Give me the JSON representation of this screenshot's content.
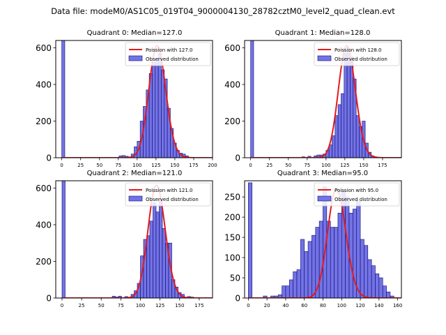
{
  "figure": {
    "suptitle": "Data file: modeM0/AS1C05_019T04_9000004130_28782cztM0_level2_quad_clean.evt"
  },
  "colors": {
    "bar_fill": "#7373e6",
    "bar_edge": "#0a0a6e",
    "poisson_line": "#e41a1c",
    "axes": "#000000"
  },
  "chart_data": [
    {
      "type": "bar",
      "title": "Quadrant 0: Median=127.0",
      "median": 127.0,
      "legend": {
        "line_label": "Poission with 127.0",
        "bar_label": "Observed distribution",
        "position": "upper-right"
      },
      "xlim": [
        -8,
        200
      ],
      "ylim": [
        0,
        640
      ],
      "xticks": [
        0,
        25,
        50,
        75,
        100,
        125,
        150,
        175,
        200
      ],
      "yticks": [
        0,
        200,
        400,
        600
      ],
      "bin_width": 4,
      "bins": [
        [
          0,
          640
        ],
        [
          76,
          10
        ],
        [
          80,
          12
        ],
        [
          84,
          8
        ],
        [
          88,
          5
        ],
        [
          92,
          20
        ],
        [
          96,
          60
        ],
        [
          100,
          90
        ],
        [
          104,
          200
        ],
        [
          108,
          280
        ],
        [
          112,
          370
        ],
        [
          116,
          460
        ],
        [
          120,
          520
        ],
        [
          124,
          540
        ],
        [
          128,
          570
        ],
        [
          132,
          480
        ],
        [
          136,
          430
        ],
        [
          140,
          270
        ],
        [
          144,
          160
        ],
        [
          148,
          80
        ],
        [
          152,
          40
        ],
        [
          156,
          25
        ],
        [
          160,
          20
        ],
        [
          164,
          10
        ]
      ],
      "poisson_peak": 610
    },
    {
      "type": "bar",
      "title": "Quadrant 1: Median=128.0",
      "median": 128.0,
      "legend": {
        "line_label": "Poission with 128.0",
        "bar_label": "Observed distribution",
        "position": "upper-right"
      },
      "xlim": [
        -8,
        200
      ],
      "ylim": [
        0,
        640
      ],
      "xticks": [
        0,
        25,
        50,
        75,
        100,
        125,
        150,
        175
      ],
      "yticks": [
        0,
        200,
        400,
        600
      ],
      "bin_width": 4,
      "bins": [
        [
          0,
          640
        ],
        [
          68,
          5
        ],
        [
          76,
          8
        ],
        [
          84,
          10
        ],
        [
          88,
          15
        ],
        [
          92,
          15
        ],
        [
          96,
          20
        ],
        [
          100,
          40
        ],
        [
          104,
          70
        ],
        [
          108,
          120
        ],
        [
          112,
          230
        ],
        [
          116,
          290
        ],
        [
          120,
          350
        ],
        [
          124,
          570
        ],
        [
          128,
          580
        ],
        [
          132,
          550
        ],
        [
          136,
          430
        ],
        [
          140,
          230
        ],
        [
          144,
          170
        ],
        [
          148,
          200
        ],
        [
          152,
          80
        ],
        [
          156,
          30
        ],
        [
          160,
          10
        ],
        [
          164,
          5
        ]
      ],
      "poisson_peak": 610
    },
    {
      "type": "bar",
      "title": "Quadrant 2: Median=121.0",
      "median": 121.0,
      "legend": {
        "line_label": "Poission with 121.0",
        "bar_label": "Observed distribution",
        "position": "upper-right"
      },
      "xlim": [
        -8,
        192
      ],
      "ylim": [
        0,
        640
      ],
      "xticks": [
        0,
        25,
        50,
        75,
        100,
        125,
        150,
        175
      ],
      "yticks": [
        0,
        200,
        400,
        600
      ],
      "bin_width": 4,
      "bins": [
        [
          0,
          640
        ],
        [
          64,
          10
        ],
        [
          68,
          5
        ],
        [
          72,
          10
        ],
        [
          80,
          8
        ],
        [
          88,
          20
        ],
        [
          92,
          40
        ],
        [
          96,
          80
        ],
        [
          100,
          230
        ],
        [
          104,
          320
        ],
        [
          108,
          340
        ],
        [
          112,
          420
        ],
        [
          116,
          520
        ],
        [
          120,
          470
        ],
        [
          124,
          540
        ],
        [
          128,
          380
        ],
        [
          132,
          300
        ],
        [
          136,
          300
        ],
        [
          140,
          100
        ],
        [
          144,
          60
        ],
        [
          148,
          30
        ],
        [
          152,
          20
        ],
        [
          160,
          8
        ],
        [
          164,
          5
        ]
      ],
      "poisson_peak": 615
    },
    {
      "type": "bar",
      "title": "Quadrant 3: Median=95.0",
      "median": 95.0,
      "legend": {
        "line_label": "Poission with 95.0",
        "bar_label": "Observed distribution",
        "position": "upper-right"
      },
      "xlim": [
        -4,
        164
      ],
      "ylim": [
        0,
        290
      ],
      "xticks": [
        0,
        20,
        40,
        60,
        80,
        100,
        120,
        140,
        160
      ],
      "yticks": [
        0,
        50,
        100,
        150,
        200,
        250
      ],
      "bin_width": 4,
      "bins": [
        [
          0,
          285
        ],
        [
          16,
          5
        ],
        [
          24,
          5
        ],
        [
          28,
          5
        ],
        [
          32,
          8
        ],
        [
          36,
          30
        ],
        [
          40,
          30
        ],
        [
          44,
          45
        ],
        [
          48,
          65
        ],
        [
          52,
          70
        ],
        [
          56,
          145
        ],
        [
          60,
          115
        ],
        [
          64,
          140
        ],
        [
          68,
          155
        ],
        [
          72,
          175
        ],
        [
          76,
          190
        ],
        [
          80,
          275
        ],
        [
          84,
          190
        ],
        [
          88,
          175
        ],
        [
          92,
          175
        ],
        [
          96,
          210
        ],
        [
          100,
          265
        ],
        [
          104,
          250
        ],
        [
          108,
          210
        ],
        [
          112,
          220
        ],
        [
          116,
          240
        ],
        [
          120,
          145
        ],
        [
          124,
          130
        ],
        [
          128,
          95
        ],
        [
          132,
          80
        ],
        [
          136,
          60
        ],
        [
          140,
          50
        ],
        [
          144,
          30
        ],
        [
          148,
          15
        ],
        [
          152,
          5
        ]
      ],
      "poisson_peak": 270
    }
  ]
}
